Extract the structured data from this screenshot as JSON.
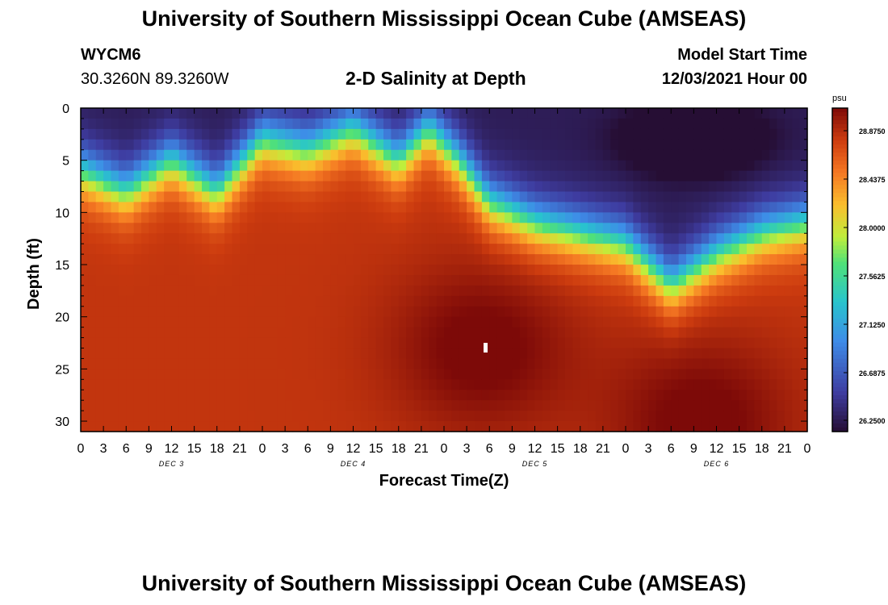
{
  "header": {
    "title": "University of Southern Mississippi Ocean Cube (AMSEAS)",
    "station": "WYCM6",
    "coords": "30.3260N  89.3260W",
    "subtitle": "2-D Salinity at Depth",
    "model_start_label": "Model Start Time",
    "model_start_value": "12/03/2021 Hour 00"
  },
  "footer": {
    "title": "University of Southern Mississippi Ocean Cube (AMSEAS)"
  },
  "chart_data": {
    "type": "heatmap",
    "title": "2-D Salinity at Depth",
    "xlabel": "Forecast Time(Z)",
    "ylabel": "Depth (ft)",
    "x_unit": "hours since 12/03/2021 00Z",
    "x_range": [
      0,
      96
    ],
    "x_tick_labels": [
      "0",
      "3",
      "6",
      "9",
      "12",
      "15",
      "18",
      "21",
      "0",
      "3",
      "6",
      "9",
      "12",
      "15",
      "18",
      "21",
      "0",
      "3",
      "6",
      "9",
      "12",
      "15",
      "18",
      "21",
      "0",
      "3",
      "6",
      "9",
      "12",
      "15",
      "18",
      "21",
      "0"
    ],
    "day_labels": [
      "DEC 3",
      "DEC 4",
      "DEC 5",
      "DEC 6"
    ],
    "y_ticks": [
      0,
      5,
      10,
      15,
      20,
      25,
      30
    ],
    "y_range": [
      0,
      31
    ],
    "colorbar": {
      "unit": "psu",
      "range": [
        26.25,
        28.875
      ],
      "tick_labels": [
        "28.8750",
        "28.4375",
        "28.0000",
        "27.5625",
        "27.1250",
        "26.6875",
        "26.2500"
      ],
      "tick_values": [
        28.875,
        28.4375,
        28.0,
        27.5625,
        27.125,
        26.6875,
        26.25
      ]
    },
    "surface_salinity_profile": {
      "description": "approximate depth (ft) of the 27.5 psu isohaline versus forecast hour",
      "hours": [
        0,
        6,
        12,
        18,
        24,
        30,
        36,
        42,
        46,
        50,
        54,
        60,
        66,
        72,
        78,
        84,
        90,
        96
      ],
      "isohaline_depth": [
        6,
        8,
        5,
        8,
        3,
        4,
        2,
        5,
        2,
        5,
        9,
        11,
        12,
        13,
        17,
        14,
        12,
        11
      ]
    },
    "deep_maxima": [
      {
        "hour": 53,
        "depth": 23,
        "salinity": 28.85
      },
      {
        "hour": 82,
        "depth": 30,
        "salinity": 28.85
      }
    ],
    "surface_minimum": {
      "hour": 81,
      "depth": 3,
      "salinity": 26.25
    }
  }
}
